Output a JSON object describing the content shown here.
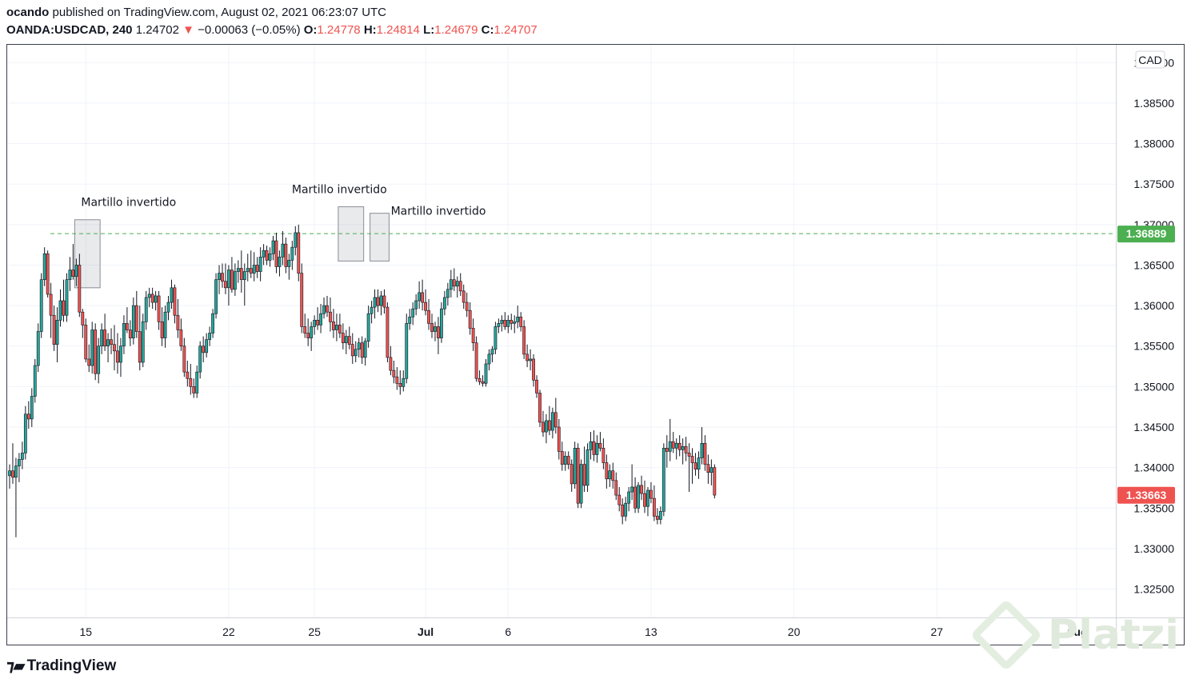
{
  "header": {
    "author": "ocando",
    "published_text": "published on TradingView.com, August 02, 2021 06:23:07 UTC",
    "symbol": "OANDA:USDCAD, 240",
    "last": "1.24702",
    "arrow": "▼",
    "change": "−0.00063 (−0.05%)",
    "o_label": "O:",
    "o_val": "1.24778",
    "h_label": "H:",
    "h_val": "1.24814",
    "l_label": "L:",
    "l_val": "1.24679",
    "c_label": "C:",
    "c_val": "1.24707"
  },
  "footer": {
    "brand": "TradingView",
    "watermark": "Platzi"
  },
  "colors": {
    "up": "#26a69a",
    "down": "#ef5350",
    "level": "#4caf50",
    "wick": "#131722"
  },
  "chart_data": {
    "type": "candlestick",
    "currency": "CAD",
    "ylim": [
      1.3215,
      1.3922
    ],
    "yticks": [
      "1.39000",
      "1.38500",
      "1.38000",
      "1.37500",
      "1.37000",
      "1.36500",
      "1.36000",
      "1.35500",
      "1.35000",
      "1.34500",
      "1.34000",
      "1.33500",
      "1.33000",
      "1.32500"
    ],
    "xticks": [
      {
        "label": "15",
        "bar": 24
      },
      {
        "label": "22",
        "bar": 69
      },
      {
        "label": "25",
        "bar": 96
      },
      {
        "label": "Jul",
        "bar": 131
      },
      {
        "label": "6",
        "bar": 157
      },
      {
        "label": "13",
        "bar": 202
      },
      {
        "label": "20",
        "bar": 247
      },
      {
        "label": "27",
        "bar": 292
      },
      {
        "label": "Aug",
        "bar": 336
      }
    ],
    "level": {
      "value": 1.36889,
      "label": "1.36889"
    },
    "last_price": {
      "value": 1.33663,
      "label": "1.33663"
    },
    "annotations": [
      {
        "text": "Martillo invertido",
        "bar_start": 21,
        "bar_end": 28,
        "hi": 1.3706,
        "lo": 1.3622
      },
      {
        "text": "Martillo invertido",
        "bar_start": 104,
        "bar_end": 111,
        "hi": 1.3722,
        "lo": 1.3655
      },
      {
        "text": "Martillo invertido",
        "bar_start": 114,
        "bar_end": 119,
        "hi": 1.3714,
        "lo": 1.3655
      }
    ],
    "ohlc": [
      [
        1.339,
        1.3404,
        1.3374,
        1.3396
      ],
      [
        1.3396,
        1.343,
        1.338,
        1.3388
      ],
      [
        1.3388,
        1.3412,
        1.3314,
        1.3402
      ],
      [
        1.3402,
        1.3418,
        1.3382,
        1.341
      ],
      [
        1.341,
        1.3432,
        1.3398,
        1.3418
      ],
      [
        1.3418,
        1.3476,
        1.341,
        1.3466
      ],
      [
        1.3466,
        1.3482,
        1.3448,
        1.346
      ],
      [
        1.346,
        1.3498,
        1.345,
        1.3488
      ],
      [
        1.3488,
        1.3534,
        1.348,
        1.3526
      ],
      [
        1.3526,
        1.3578,
        1.3518,
        1.3568
      ],
      [
        1.3568,
        1.364,
        1.356,
        1.3632
      ],
      [
        1.3632,
        1.3672,
        1.3624,
        1.3664
      ],
      [
        1.3664,
        1.3668,
        1.361,
        1.3614
      ],
      [
        1.3614,
        1.3628,
        1.356,
        1.3588
      ],
      [
        1.3588,
        1.36,
        1.3544,
        1.3552
      ],
      [
        1.3552,
        1.3598,
        1.353,
        1.3582
      ],
      [
        1.3582,
        1.362,
        1.3574,
        1.3606
      ],
      [
        1.3606,
        1.3632,
        1.358,
        1.3588
      ],
      [
        1.3588,
        1.364,
        1.358,
        1.3632
      ],
      [
        1.3632,
        1.366,
        1.3618,
        1.3644
      ],
      [
        1.3644,
        1.3676,
        1.3632,
        1.3636
      ],
      [
        1.3636,
        1.3658,
        1.3624,
        1.365
      ],
      [
        1.365,
        1.3664,
        1.3586,
        1.3592
      ],
      [
        1.3592,
        1.3596,
        1.356,
        1.3576
      ],
      [
        1.3576,
        1.3584,
        1.353,
        1.3534
      ],
      [
        1.3534,
        1.3552,
        1.3518,
        1.3526
      ],
      [
        1.3526,
        1.358,
        1.3516,
        1.357
      ],
      [
        1.357,
        1.3578,
        1.3508,
        1.3516
      ],
      [
        1.3516,
        1.356,
        1.3504,
        1.355
      ],
      [
        1.355,
        1.3578,
        1.354,
        1.357
      ],
      [
        1.357,
        1.359,
        1.3544,
        1.355
      ],
      [
        1.355,
        1.3566,
        1.353,
        1.3558
      ],
      [
        1.3558,
        1.3572,
        1.354,
        1.3552
      ],
      [
        1.3552,
        1.3576,
        1.352,
        1.3544
      ],
      [
        1.3544,
        1.3566,
        1.3516,
        1.353
      ],
      [
        1.353,
        1.356,
        1.3512,
        1.355
      ],
      [
        1.355,
        1.3588,
        1.354,
        1.3578
      ],
      [
        1.3578,
        1.3598,
        1.3566,
        1.357
      ],
      [
        1.357,
        1.3582,
        1.355,
        1.356
      ],
      [
        1.356,
        1.361,
        1.3552,
        1.36
      ],
      [
        1.36,
        1.3618,
        1.356,
        1.3568
      ],
      [
        1.3568,
        1.36,
        1.352,
        1.353
      ],
      [
        1.353,
        1.359,
        1.3524,
        1.358
      ],
      [
        1.358,
        1.3618,
        1.357,
        1.361
      ],
      [
        1.361,
        1.3622,
        1.3598,
        1.3614
      ],
      [
        1.3614,
        1.3622,
        1.3596,
        1.3604
      ],
      [
        1.3604,
        1.3618,
        1.3594,
        1.3612
      ],
      [
        1.3612,
        1.3618,
        1.357,
        1.358
      ],
      [
        1.358,
        1.3598,
        1.355,
        1.356
      ],
      [
        1.356,
        1.36,
        1.3548,
        1.3592
      ],
      [
        1.3592,
        1.3612,
        1.3582,
        1.3604
      ],
      [
        1.3604,
        1.3632,
        1.3596,
        1.3622
      ],
      [
        1.3622,
        1.3626,
        1.3578,
        1.3588
      ],
      [
        1.3588,
        1.3608,
        1.356,
        1.357
      ],
      [
        1.357,
        1.3584,
        1.3544,
        1.355
      ],
      [
        1.355,
        1.356,
        1.3512,
        1.3518
      ],
      [
        1.3518,
        1.3532,
        1.35,
        1.351
      ],
      [
        1.351,
        1.3528,
        1.349,
        1.35
      ],
      [
        1.35,
        1.351,
        1.3486,
        1.3492
      ],
      [
        1.3492,
        1.3526,
        1.3486,
        1.3518
      ],
      [
        1.3518,
        1.3556,
        1.351,
        1.355
      ],
      [
        1.355,
        1.3562,
        1.353,
        1.3542
      ],
      [
        1.3542,
        1.3566,
        1.3536,
        1.3558
      ],
      [
        1.3558,
        1.3574,
        1.355,
        1.3566
      ],
      [
        1.3566,
        1.3596,
        1.356,
        1.359
      ],
      [
        1.359,
        1.364,
        1.3584,
        1.3632
      ],
      [
        1.3632,
        1.365,
        1.3614,
        1.364
      ],
      [
        1.364,
        1.3652,
        1.3622,
        1.363
      ],
      [
        1.363,
        1.3652,
        1.3614,
        1.3622
      ],
      [
        1.3622,
        1.365,
        1.36,
        1.3644
      ],
      [
        1.3644,
        1.366,
        1.3616,
        1.362
      ],
      [
        1.362,
        1.3652,
        1.3612,
        1.3642
      ],
      [
        1.3642,
        1.3656,
        1.3628,
        1.3646
      ],
      [
        1.3646,
        1.3668,
        1.3616,
        1.3632
      ],
      [
        1.3632,
        1.3652,
        1.36,
        1.3642
      ],
      [
        1.3642,
        1.3664,
        1.363,
        1.3646
      ],
      [
        1.3646,
        1.3668,
        1.3634,
        1.364
      ],
      [
        1.364,
        1.3666,
        1.363,
        1.365
      ],
      [
        1.365,
        1.366,
        1.3634,
        1.3642
      ],
      [
        1.3642,
        1.3672,
        1.363,
        1.366
      ],
      [
        1.366,
        1.3676,
        1.365,
        1.3668
      ],
      [
        1.3668,
        1.3674,
        1.365,
        1.3656
      ],
      [
        1.3656,
        1.3672,
        1.3648,
        1.3664
      ],
      [
        1.3664,
        1.3686,
        1.3656,
        1.368
      ],
      [
        1.368,
        1.369,
        1.364,
        1.3648
      ],
      [
        1.3648,
        1.3668,
        1.3636,
        1.366
      ],
      [
        1.366,
        1.3692,
        1.365,
        1.3676
      ],
      [
        1.3676,
        1.3684,
        1.364,
        1.3648
      ],
      [
        1.3648,
        1.3664,
        1.3632,
        1.3656
      ],
      [
        1.3656,
        1.368,
        1.3644,
        1.3672
      ],
      [
        1.3672,
        1.3698,
        1.3662,
        1.369
      ],
      [
        1.369,
        1.37,
        1.363,
        1.364
      ],
      [
        1.364,
        1.3652,
        1.3566,
        1.3574
      ],
      [
        1.3574,
        1.359,
        1.356,
        1.3566
      ],
      [
        1.3566,
        1.3584,
        1.355,
        1.356
      ],
      [
        1.356,
        1.358,
        1.3544,
        1.3574
      ],
      [
        1.3574,
        1.3588,
        1.3564,
        1.3582
      ],
      [
        1.3582,
        1.3598,
        1.357,
        1.3576
      ],
      [
        1.3576,
        1.3602,
        1.3566,
        1.359
      ],
      [
        1.359,
        1.361,
        1.3584,
        1.36
      ],
      [
        1.36,
        1.3612,
        1.3586,
        1.3592
      ],
      [
        1.3592,
        1.361,
        1.3568,
        1.358
      ],
      [
        1.358,
        1.3596,
        1.356,
        1.357
      ],
      [
        1.357,
        1.359,
        1.3556,
        1.3576
      ],
      [
        1.3576,
        1.359,
        1.356,
        1.3566
      ],
      [
        1.3566,
        1.3578,
        1.3546,
        1.3554
      ],
      [
        1.3554,
        1.357,
        1.354,
        1.3562
      ],
      [
        1.3562,
        1.3574,
        1.3546,
        1.3552
      ],
      [
        1.3552,
        1.3566,
        1.3528,
        1.3538
      ],
      [
        1.3538,
        1.3556,
        1.353,
        1.3546
      ],
      [
        1.3546,
        1.356,
        1.3536,
        1.3554
      ],
      [
        1.3554,
        1.3562,
        1.3528,
        1.3536
      ],
      [
        1.3536,
        1.356,
        1.3526,
        1.3556
      ],
      [
        1.3556,
        1.36,
        1.3548,
        1.359
      ],
      [
        1.359,
        1.3606,
        1.3578,
        1.3598
      ],
      [
        1.3598,
        1.362,
        1.3584,
        1.361
      ],
      [
        1.361,
        1.362,
        1.3592,
        1.36
      ],
      [
        1.36,
        1.3618,
        1.3588,
        1.3612
      ],
      [
        1.3612,
        1.362,
        1.359,
        1.3598
      ],
      [
        1.3598,
        1.3604,
        1.353,
        1.3536
      ],
      [
        1.3536,
        1.355,
        1.3514,
        1.352
      ],
      [
        1.352,
        1.3532,
        1.3504,
        1.3512
      ],
      [
        1.3512,
        1.3524,
        1.3496,
        1.3504
      ],
      [
        1.3504,
        1.352,
        1.349,
        1.35
      ],
      [
        1.35,
        1.352,
        1.3494,
        1.351
      ],
      [
        1.351,
        1.359,
        1.3504,
        1.3578
      ],
      [
        1.3578,
        1.3596,
        1.357,
        1.3586
      ],
      [
        1.3586,
        1.3604,
        1.3576,
        1.3596
      ],
      [
        1.3596,
        1.3614,
        1.3588,
        1.3606
      ],
      [
        1.3606,
        1.363,
        1.3596,
        1.3616
      ],
      [
        1.3616,
        1.3632,
        1.3594,
        1.3604
      ],
      [
        1.3604,
        1.362,
        1.3588,
        1.3594
      ],
      [
        1.3594,
        1.3608,
        1.357,
        1.3578
      ],
      [
        1.3578,
        1.359,
        1.356,
        1.3568
      ],
      [
        1.3568,
        1.358,
        1.3556,
        1.3574
      ],
      [
        1.3574,
        1.3586,
        1.354,
        1.356
      ],
      [
        1.356,
        1.3604,
        1.3554,
        1.3596
      ],
      [
        1.3596,
        1.3618,
        1.3588,
        1.361
      ],
      [
        1.361,
        1.3628,
        1.36,
        1.362
      ],
      [
        1.362,
        1.3644,
        1.361,
        1.3632
      ],
      [
        1.3632,
        1.3646,
        1.3618,
        1.3624
      ],
      [
        1.3624,
        1.3636,
        1.361,
        1.363
      ],
      [
        1.363,
        1.364,
        1.3612,
        1.3618
      ],
      [
        1.3618,
        1.3626,
        1.3596,
        1.3604
      ],
      [
        1.3604,
        1.3616,
        1.3586,
        1.3594
      ],
      [
        1.3594,
        1.3604,
        1.3564,
        1.3572
      ],
      [
        1.3572,
        1.3584,
        1.3544,
        1.3554
      ],
      [
        1.3554,
        1.3562,
        1.3506,
        1.351
      ],
      [
        1.351,
        1.352,
        1.3502,
        1.3506
      ],
      [
        1.3506,
        1.3514,
        1.35,
        1.3504
      ],
      [
        1.3504,
        1.3534,
        1.35,
        1.3528
      ],
      [
        1.3528,
        1.3546,
        1.352,
        1.354
      ],
      [
        1.354,
        1.355,
        1.353,
        1.3546
      ],
      [
        1.3546,
        1.358,
        1.354,
        1.3574
      ],
      [
        1.3574,
        1.3584,
        1.3566,
        1.3578
      ],
      [
        1.3578,
        1.3588,
        1.3568,
        1.3582
      ],
      [
        1.3582,
        1.3592,
        1.357,
        1.3574
      ],
      [
        1.3574,
        1.3588,
        1.3566,
        1.3582
      ],
      [
        1.3582,
        1.359,
        1.357,
        1.3578
      ],
      [
        1.3578,
        1.3588,
        1.3566,
        1.358
      ],
      [
        1.358,
        1.36,
        1.3572,
        1.3586
      ],
      [
        1.3586,
        1.3592,
        1.3568,
        1.3574
      ],
      [
        1.3574,
        1.3582,
        1.3534,
        1.354
      ],
      [
        1.354,
        1.3552,
        1.3524,
        1.3532
      ],
      [
        1.3532,
        1.3546,
        1.352,
        1.3534
      ],
      [
        1.3534,
        1.354,
        1.35,
        1.3508
      ],
      [
        1.3508,
        1.3514,
        1.3486,
        1.3492
      ],
      [
        1.3492,
        1.3496,
        1.345,
        1.3456
      ],
      [
        1.3456,
        1.347,
        1.3438,
        1.3444
      ],
      [
        1.3444,
        1.3466,
        1.343,
        1.3458
      ],
      [
        1.3458,
        1.3476,
        1.344,
        1.3446
      ],
      [
        1.3446,
        1.3474,
        1.3436,
        1.3468
      ],
      [
        1.3468,
        1.3486,
        1.3442,
        1.345
      ],
      [
        1.345,
        1.346,
        1.341,
        1.342
      ],
      [
        1.342,
        1.3432,
        1.3396,
        1.3404
      ],
      [
        1.3404,
        1.342,
        1.3396,
        1.3414
      ],
      [
        1.3414,
        1.342,
        1.3398,
        1.3404
      ],
      [
        1.3404,
        1.341,
        1.337,
        1.338
      ],
      [
        1.338,
        1.3432,
        1.3374,
        1.3424
      ],
      [
        1.3424,
        1.343,
        1.335,
        1.3356
      ],
      [
        1.3356,
        1.341,
        1.335,
        1.3404
      ],
      [
        1.3404,
        1.3426,
        1.337,
        1.3378
      ],
      [
        1.3378,
        1.343,
        1.337,
        1.3422
      ],
      [
        1.3422,
        1.3444,
        1.341,
        1.3432
      ],
      [
        1.3432,
        1.3446,
        1.3408,
        1.3416
      ],
      [
        1.3416,
        1.344,
        1.3406,
        1.343
      ],
      [
        1.343,
        1.3444,
        1.342,
        1.3424
      ],
      [
        1.3424,
        1.3436,
        1.3398,
        1.3406
      ],
      [
        1.3406,
        1.3416,
        1.3374,
        1.3386
      ],
      [
        1.3386,
        1.3404,
        1.3376,
        1.3396
      ],
      [
        1.3396,
        1.3406,
        1.3374,
        1.3384
      ],
      [
        1.3384,
        1.3394,
        1.336,
        1.3366
      ],
      [
        1.3366,
        1.3376,
        1.3346,
        1.3354
      ],
      [
        1.3354,
        1.3362,
        1.333,
        1.334
      ],
      [
        1.334,
        1.3364,
        1.3334,
        1.3356
      ],
      [
        1.3356,
        1.3376,
        1.3346,
        1.337
      ],
      [
        1.337,
        1.3404,
        1.336,
        1.3376
      ],
      [
        1.3376,
        1.3388,
        1.3344,
        1.335
      ],
      [
        1.335,
        1.3382,
        1.3344,
        1.3378
      ],
      [
        1.3378,
        1.339,
        1.336,
        1.3368
      ],
      [
        1.3368,
        1.3384,
        1.3344,
        1.3352
      ],
      [
        1.3352,
        1.3376,
        1.334,
        1.3372
      ],
      [
        1.3372,
        1.3382,
        1.3356,
        1.3362
      ],
      [
        1.3362,
        1.3378,
        1.3334,
        1.334
      ],
      [
        1.334,
        1.335,
        1.333,
        1.3336
      ],
      [
        1.3336,
        1.3352,
        1.333,
        1.3346
      ],
      [
        1.3346,
        1.343,
        1.334,
        1.3424
      ],
      [
        1.3424,
        1.344,
        1.34,
        1.342
      ],
      [
        1.342,
        1.346,
        1.3408,
        1.3432
      ],
      [
        1.3432,
        1.3444,
        1.3418,
        1.3424
      ],
      [
        1.3424,
        1.3436,
        1.341,
        1.343
      ],
      [
        1.343,
        1.344,
        1.3414,
        1.3422
      ],
      [
        1.3422,
        1.3436,
        1.3404,
        1.3426
      ],
      [
        1.3426,
        1.3438,
        1.3408,
        1.3418
      ],
      [
        1.3418,
        1.343,
        1.337,
        1.3414
      ],
      [
        1.3414,
        1.3424,
        1.338,
        1.3406
      ],
      [
        1.3406,
        1.3418,
        1.339,
        1.3398
      ],
      [
        1.3398,
        1.342,
        1.3386,
        1.3412
      ],
      [
        1.3412,
        1.345,
        1.3404,
        1.343
      ],
      [
        1.343,
        1.344,
        1.3396,
        1.3404
      ],
      [
        1.3404,
        1.3416,
        1.338,
        1.3394
      ],
      [
        1.3394,
        1.341,
        1.3378,
        1.34
      ],
      [
        1.34,
        1.3404,
        1.3362,
        1.3366
      ]
    ]
  }
}
